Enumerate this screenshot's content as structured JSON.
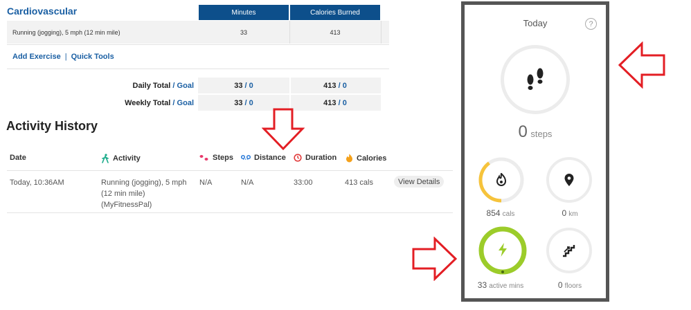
{
  "cardio": {
    "title": "Cardiovascular",
    "col_minutes": "Minutes",
    "col_calories": "Calories Burned",
    "row": {
      "exercise": "Running (jogging), 5 mph (12 min mile)",
      "minutes": "33",
      "calories": "413"
    },
    "add_exercise": "Add Exercise",
    "separator": "|",
    "quick_tools": "Quick Tools",
    "daily_total_label": "Daily Total",
    "weekly_total_label": "Weekly Total",
    "slash": "/",
    "goal": "Goal",
    "daily": {
      "minutes": "33",
      "minutes_goal": "0",
      "calories": "413",
      "calories_goal": "0"
    },
    "weekly": {
      "minutes": "33",
      "minutes_goal": "0",
      "calories": "413",
      "calories_goal": "0"
    }
  },
  "history": {
    "title": "Activity History",
    "headers": {
      "date": "Date",
      "activity": "Activity",
      "steps": "Steps",
      "distance": "Distance",
      "duration": "Duration",
      "calories": "Calories"
    },
    "row": {
      "date": "Today, 10:36AM",
      "activity_line1": "Running (jogging), 5 mph",
      "activity_line2": "(12 min mile)",
      "activity_line3": "(MyFitnessPal)",
      "steps": "N/A",
      "distance": "N/A",
      "duration": "33:00",
      "calories": "413 cals",
      "view": "View Details"
    }
  },
  "panel": {
    "title": "Today",
    "help": "?",
    "steps": {
      "value": "0",
      "unit": "steps"
    },
    "cals": {
      "value": "854",
      "unit": "cals",
      "progress": 0.4
    },
    "km": {
      "value": "0",
      "unit": "km"
    },
    "active": {
      "value": "33",
      "unit": "active mins",
      "progress": 1.0
    },
    "floors": {
      "value": "0",
      "unit": "floors"
    }
  },
  "colors": {
    "header_blue": "#0d4f8b",
    "link_blue": "#1a5fa3",
    "cals_ring": "#f6c33b",
    "active_ring": "#9ccc2a",
    "arrow_red": "#e31e24"
  }
}
